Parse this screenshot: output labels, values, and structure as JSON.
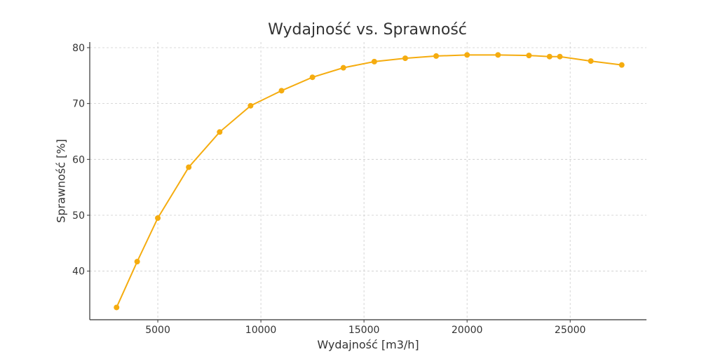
{
  "chart_data": {
    "type": "line",
    "title": "Wydajność vs. Sprawność",
    "xlabel": "Wydajność [m3/h]",
    "ylabel": "Sprawność [%]",
    "xlim": [
      1700,
      28700
    ],
    "ylim": [
      31.3,
      81.0
    ],
    "xticks": [
      5000,
      10000,
      15000,
      20000,
      25000
    ],
    "yticks": [
      40,
      50,
      60,
      70,
      80
    ],
    "grid": true,
    "color": "#f5ac0f",
    "series": [
      {
        "x": [
          3000,
          4000,
          5000,
          6500,
          8000,
          9500,
          11000,
          12500,
          14000,
          15500,
          17000,
          18500,
          20000,
          21500,
          23000,
          24000,
          24500,
          26000,
          27500
        ],
        "y": [
          33.5,
          41.7,
          49.5,
          58.6,
          64.9,
          69.6,
          72.3,
          74.7,
          76.4,
          77.5,
          78.1,
          78.5,
          78.7,
          78.7,
          78.6,
          78.4,
          78.4,
          77.6,
          76.9
        ]
      }
    ]
  }
}
